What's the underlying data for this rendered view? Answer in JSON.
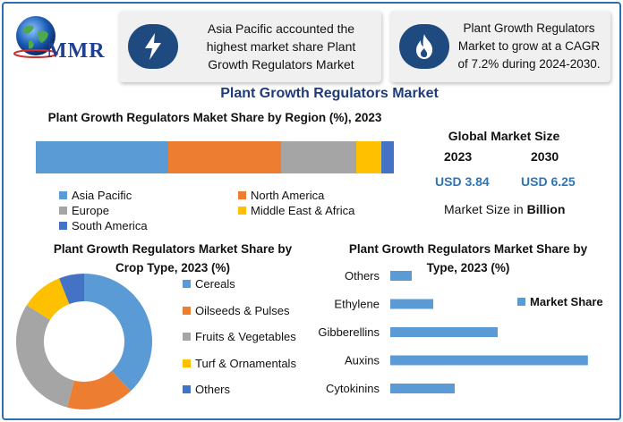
{
  "logo": {
    "text": "MMR",
    "globe_icon": "globe-icon"
  },
  "info_boxes": [
    {
      "icon": "lightning-icon",
      "text": "Asia Pacific accounted the highest market share Plant Growth Regulators Market"
    },
    {
      "icon": "flame-icon",
      "text": "Plant Growth Regulators Market to grow at a CAGR of 7.2% during 2024-2030."
    }
  ],
  "main_title": "Plant Growth Regulators Market",
  "global_market": {
    "title": "Global Market Size",
    "year_a": "2023",
    "year_b": "2030",
    "value_a": "USD 3.84",
    "value_b": "USD 6.25",
    "unit_prefix": "Market Size in ",
    "unit": "Billion"
  },
  "colors": {
    "blue": "#5b9bd5",
    "orange": "#ed7d31",
    "gray": "#a5a5a5",
    "yellow": "#ffc000",
    "darkblue": "#4472c4",
    "accent": "#2e75b6",
    "title": "#1f3b7a"
  },
  "chart_data": [
    {
      "type": "bar",
      "stacked": true,
      "orientation": "horizontal",
      "title": "Plant Growth Regulators Maket Share by Region (%), 2023",
      "series": [
        {
          "name": "Asia Pacific",
          "values": [
            37
          ]
        },
        {
          "name": "North America",
          "values": [
            31.5
          ]
        },
        {
          "name": "Europe",
          "values": [
            21
          ]
        },
        {
          "name": "Middle East & Africa",
          "values": [
            7
          ]
        },
        {
          "name": "South America",
          "values": [
            3.5
          ]
        }
      ],
      "legend": "bottom"
    },
    {
      "type": "pie",
      "donut": true,
      "title": "Plant Growth Regulators Market Share by Crop Type, 2023 (%)",
      "categories": [
        "Cereals",
        "Oilseeds & Pulses",
        "Fruits & Vegetables",
        "Turf & Ornamentals",
        "Others"
      ],
      "values": [
        38,
        16,
        30,
        10,
        6
      ],
      "legend": "right"
    },
    {
      "type": "bar",
      "orientation": "horizontal",
      "title": "Plant Growth Regulators Market Share by Type, 2023 (%)",
      "series": [
        {
          "name": "Market Share",
          "values": [
            10,
            20,
            50,
            92,
            30
          ]
        }
      ],
      "categories": [
        "Others",
        "Ethylene",
        "Gibberellins",
        "Auxins",
        "Cytokinins"
      ],
      "xlim": [
        0,
        100
      ],
      "legend": "right"
    }
  ]
}
